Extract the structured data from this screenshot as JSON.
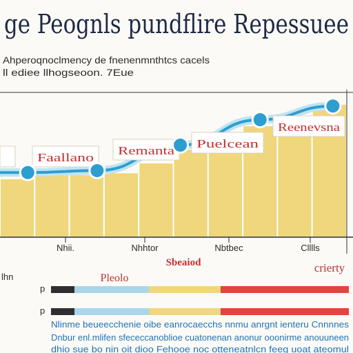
{
  "title": "ge Peognls pundflire Repessuee",
  "subtitle_lines": [
    "Ahperoqnoclmency de fnenenmnthtcs cacels",
    "ll ediee llhogseoon. 7Eue"
  ],
  "bar_labels": [
    "Faallano",
    "Remanta",
    "Puelcean",
    "Reenevsna"
  ],
  "x_ticks": [
    "Nhii.",
    "Nhhtor",
    "Nbtbec",
    "Clllls"
  ],
  "middle_labels": {
    "center": "Sbeaiod",
    "right": "crierty",
    "left": "Pleolo",
    "left_margin": "lhn"
  },
  "legend_rows": [
    "p",
    "p"
  ],
  "footer_lines": [
    "Nlinme beueecchenie oibe eanrocaecchs nnmu anrgnt ienteru Cnnnnes",
    "Dnbur enl.mlifen sfececcanoblioe cuatonenan anonur ooonirme  anouuneen",
    "dhio sue bo nin oit dioo Fehooe noc otteneatnlcn feeg uoat ateomul"
  ],
  "colors": {
    "bar_fill": "#f0d67c",
    "bar_edge": "#ffffff",
    "line_blue": "#2d9ed0",
    "line_light": "#bfe3f3",
    "label_red": "#c0312f",
    "title_navy": "#1e2a44",
    "footer_blue": "#1f74b6",
    "legend": [
      "#2f2f33",
      "#a9d6ea",
      "#f0d67c",
      "#e0463d"
    ]
  },
  "chart_data": {
    "type": "area",
    "x": [
      0,
      1,
      2,
      3,
      4,
      5,
      6,
      7,
      8,
      9
    ],
    "values": [
      30,
      32,
      32,
      33,
      38,
      45,
      52,
      57,
      62,
      68
    ],
    "markers": [
      {
        "x": 0.8,
        "y": 33,
        "label": "Faallano"
      },
      {
        "x": 2.8,
        "y": 34,
        "label": "Remanta"
      },
      {
        "x": 5.2,
        "y": 47,
        "label": "Puelcean"
      },
      {
        "x": 7.5,
        "y": 60,
        "label": "Reenevsna"
      },
      {
        "x": 9.6,
        "y": 67,
        "label": ""
      }
    ],
    "ylim": [
      0,
      100
    ],
    "grid": false
  }
}
